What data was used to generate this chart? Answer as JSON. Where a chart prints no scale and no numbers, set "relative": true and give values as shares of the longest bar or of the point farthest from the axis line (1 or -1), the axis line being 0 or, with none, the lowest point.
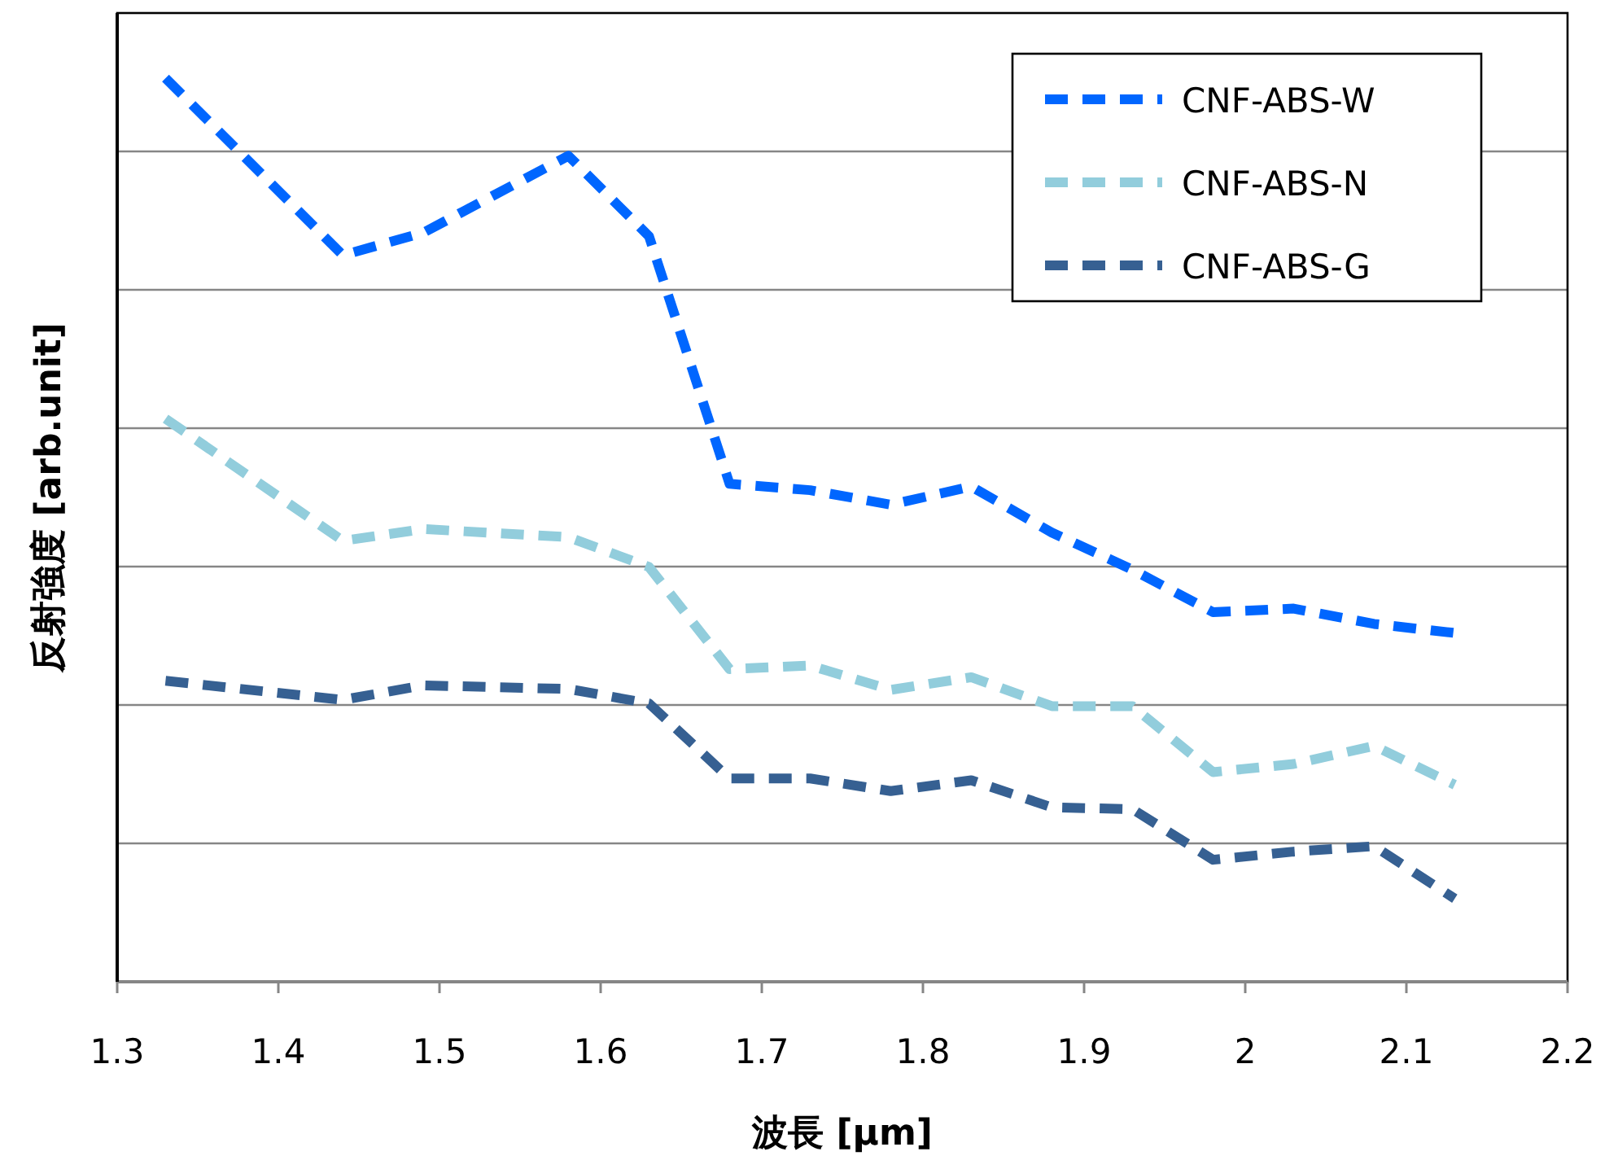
{
  "chart_data": {
    "type": "line",
    "xlabel": "波長 [μm]",
    "ylabel": "反射強度 [arb.unit]",
    "relative": true,
    "x": [
      1.33,
      1.44,
      1.49,
      1.58,
      1.63,
      1.68,
      1.73,
      1.78,
      1.83,
      1.88,
      1.93,
      1.98,
      2.03,
      2.08,
      2.13
    ],
    "xlim": [
      1.3,
      2.2
    ],
    "xticks": [
      1.3,
      1.4,
      1.5,
      1.6,
      1.7,
      1.8,
      1.9,
      2,
      2.1,
      2.2
    ],
    "grid": "y",
    "legend": "top right",
    "marker": "none",
    "line_style": "dashed",
    "series": [
      {
        "name": "CNF-ABS-W",
        "color": "#0066ff",
        "values": [
          1.0,
          0.804,
          0.829,
          0.914,
          0.825,
          0.551,
          0.544,
          0.528,
          0.548,
          0.497,
          0.456,
          0.409,
          0.413,
          0.396,
          0.386
        ]
      },
      {
        "name": "CNF-ABS-N",
        "color": "#92cddc",
        "values": [
          0.623,
          0.488,
          0.501,
          0.492,
          0.459,
          0.346,
          0.35,
          0.323,
          0.337,
          0.305,
          0.305,
          0.232,
          0.241,
          0.261,
          0.218
        ]
      },
      {
        "name": "CNF-ABS-G",
        "color": "#366092",
        "values": [
          0.333,
          0.312,
          0.328,
          0.324,
          0.308,
          0.225,
          0.225,
          0.211,
          0.223,
          0.193,
          0.191,
          0.135,
          0.144,
          0.15,
          0.092
        ]
      }
    ]
  }
}
